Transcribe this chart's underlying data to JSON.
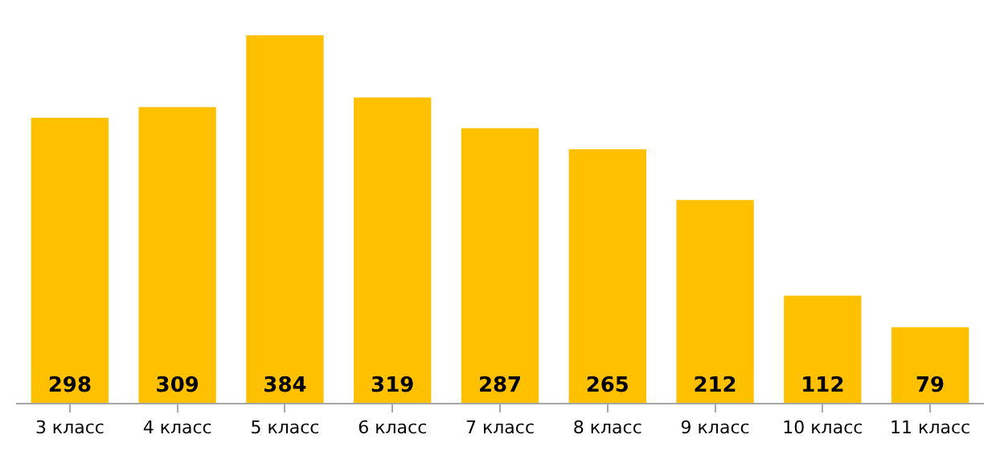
{
  "chart_data": {
    "type": "bar",
    "categories": [
      "3 класс",
      "4 класс",
      "5 класс",
      "6 класс",
      "7 класс",
      "8 класс",
      "9 класс",
      "10 класс",
      "11 класс"
    ],
    "values": [
      298,
      309,
      384,
      319,
      287,
      265,
      212,
      112,
      79
    ],
    "color": "#ffc000",
    "data_labels": true
  }
}
